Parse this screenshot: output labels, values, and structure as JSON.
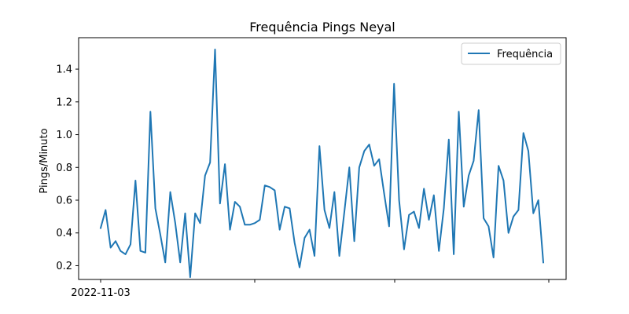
{
  "chart_data": {
    "type": "line",
    "title": "Frequência Pings Neyal",
    "xlabel": "",
    "ylabel": "Pings/Minuto",
    "ylim": [
      0.116,
      1.592
    ],
    "yticks": [
      0.2,
      0.4,
      0.6,
      0.8,
      1.0,
      1.2,
      1.4
    ],
    "ytick_labels": [
      "0.2",
      "0.4",
      "0.6",
      "0.8",
      "1.0",
      "1.2",
      "1.4"
    ],
    "xtick_labels": [
      "2022-11-03",
      "",
      "",
      ""
    ],
    "legend": {
      "position": "top-right",
      "entries": [
        "Frequência"
      ]
    },
    "grid": false,
    "color": "#1f77b4",
    "series": [
      {
        "name": "Frequência",
        "values": [
          0.43,
          0.54,
          0.31,
          0.35,
          0.29,
          0.27,
          0.33,
          0.72,
          0.29,
          0.28,
          1.14,
          0.55,
          0.39,
          0.22,
          0.65,
          0.46,
          0.22,
          0.52,
          0.13,
          0.52,
          0.46,
          0.75,
          0.83,
          1.52,
          0.58,
          0.82,
          0.42,
          0.59,
          0.56,
          0.45,
          0.45,
          0.46,
          0.48,
          0.69,
          0.68,
          0.66,
          0.42,
          0.56,
          0.55,
          0.34,
          0.19,
          0.37,
          0.42,
          0.26,
          0.93,
          0.54,
          0.43,
          0.65,
          0.26,
          0.53,
          0.8,
          0.35,
          0.8,
          0.9,
          0.94,
          0.81,
          0.85,
          0.64,
          0.44,
          1.31,
          0.6,
          0.3,
          0.51,
          0.53,
          0.43,
          0.67,
          0.48,
          0.63,
          0.29,
          0.55,
          0.97,
          0.27,
          1.14,
          0.56,
          0.75,
          0.84,
          1.15,
          0.49,
          0.44,
          0.25,
          0.81,
          0.72,
          0.4,
          0.5,
          0.54,
          1.01,
          0.9,
          0.52,
          0.6,
          0.22
        ]
      }
    ]
  }
}
